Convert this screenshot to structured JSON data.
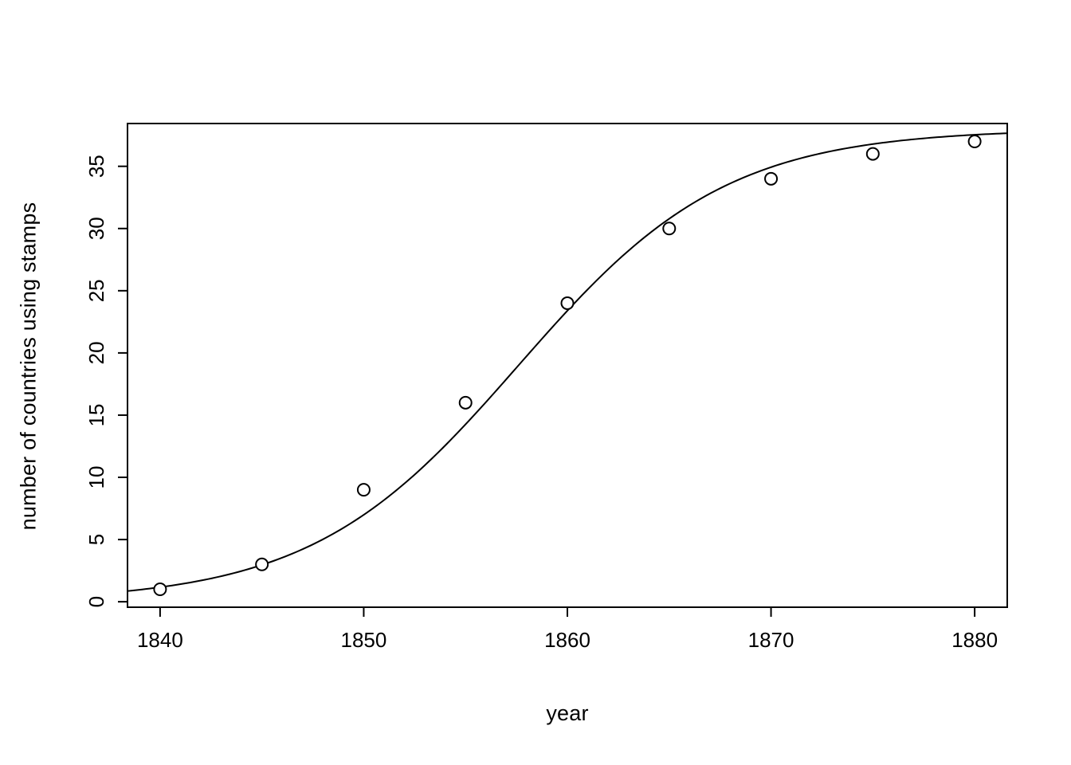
{
  "page": {
    "background": "#ffffff",
    "foreground": "#000000"
  },
  "chart_data": {
    "type": "scatter",
    "title": "",
    "xlabel": "year",
    "ylabel": "number of countries using stamps",
    "x": [
      1840,
      1845,
      1850,
      1855,
      1860,
      1865,
      1870,
      1875,
      1880
    ],
    "y": [
      1,
      3,
      9,
      16,
      24,
      30,
      34,
      36,
      37
    ],
    "series_name": "countries using stamps",
    "fit_curve": {
      "type": "logistic",
      "asymptote": 38,
      "midpoint": 1857.6,
      "scale": 5.1
    },
    "x_ticks": [
      1840,
      1850,
      1860,
      1870,
      1880
    ],
    "y_ticks": [
      0,
      5,
      10,
      15,
      20,
      25,
      30,
      35
    ],
    "xlim": [
      1838.4,
      1881.6
    ],
    "ylim": [
      -0.44,
      38.44
    ],
    "grid": false,
    "legend": null,
    "point_style": {
      "shape": "open-circle",
      "color": "#000000",
      "fill": "#ffffff"
    },
    "line_color": "#000000"
  }
}
